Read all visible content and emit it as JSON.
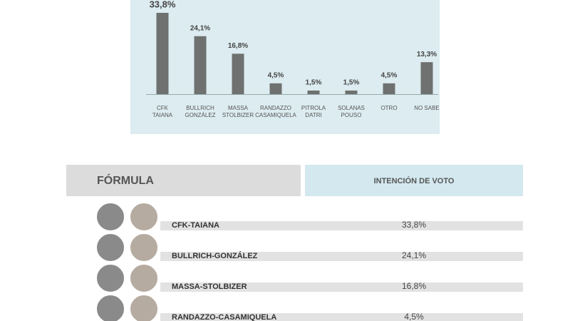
{
  "chart_data": {
    "type": "bar",
    "categories": [
      [
        "CFK",
        "TAIANA"
      ],
      [
        "BULLRICH",
        "GONZÁLEZ"
      ],
      [
        "MASSA",
        "STOLBIZER"
      ],
      [
        "RANDAZZO",
        "CASAMIQUELA"
      ],
      [
        "PITROLA",
        "DATRI"
      ],
      [
        "SOLANAS",
        "POUSO"
      ],
      [
        "OTRO"
      ],
      [
        "NO SABE"
      ]
    ],
    "values": [
      33.8,
      24.1,
      16.8,
      4.5,
      1.5,
      1.5,
      4.5,
      13.3
    ],
    "value_labels": [
      "33,8%",
      "24,1%",
      "16,8%",
      "4,5%",
      "1,5%",
      "1,5%",
      "4,5%",
      "13,3%"
    ],
    "color": "#6e716f"
  },
  "table": {
    "header": [
      "FÓRMULA",
      "INTENCIÓN DE VOTO"
    ],
    "rows": [
      [
        "CFK-TAIANA",
        "33,8%"
      ],
      [
        "BULLRICH-GONZÁLEZ",
        "24,1%"
      ],
      [
        "MASSA-STOLBIZER",
        "16,8%"
      ],
      [
        "RANDAZZO-CASAMIQUELA",
        "4,5%"
      ]
    ]
  }
}
